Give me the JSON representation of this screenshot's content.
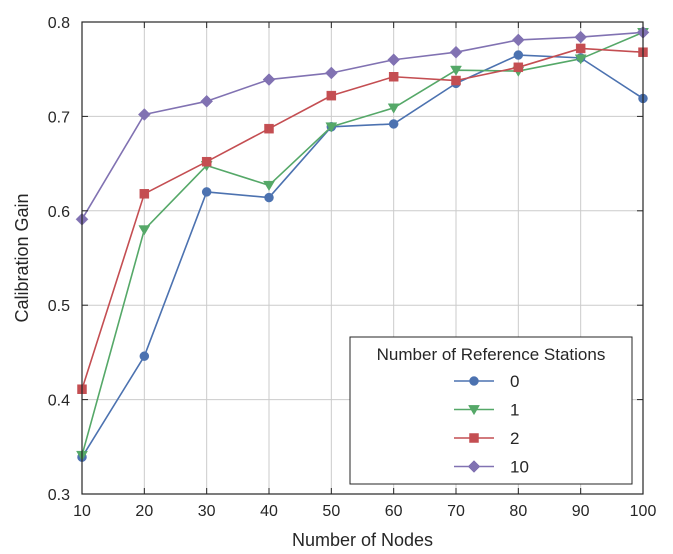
{
  "chart_data": {
    "type": "line",
    "xlabel": "Number of Nodes",
    "ylabel": "Calibration Gain",
    "x": [
      10,
      20,
      30,
      40,
      50,
      60,
      70,
      80,
      90,
      100
    ],
    "xlim": [
      10,
      100
    ],
    "ylim": [
      0.3,
      0.8
    ],
    "x_ticks": [
      "10",
      "20",
      "30",
      "40",
      "50",
      "60",
      "70",
      "80",
      "90",
      "100"
    ],
    "y_ticks": [
      "0.3",
      "0.4",
      "0.5",
      "0.6",
      "0.7",
      "0.8"
    ],
    "grid": true,
    "legend": {
      "title": "Number of Reference Stations",
      "placement": "lower-right"
    },
    "series": [
      {
        "name": "0",
        "color": "#4c72b0",
        "marker": "circle",
        "values": [
          0.339,
          0.446,
          0.62,
          0.614,
          0.689,
          0.692,
          0.735,
          0.765,
          0.762,
          0.719
        ]
      },
      {
        "name": "1",
        "color": "#55a868",
        "marker": "triangle-down",
        "values": [
          0.341,
          0.58,
          0.648,
          0.627,
          0.689,
          0.709,
          0.749,
          0.748,
          0.761,
          0.789
        ]
      },
      {
        "name": "2",
        "color": "#c44e52",
        "marker": "square",
        "values": [
          0.411,
          0.618,
          0.652,
          0.687,
          0.722,
          0.742,
          0.738,
          0.752,
          0.772,
          0.768
        ]
      },
      {
        "name": "10",
        "color": "#8172b2",
        "marker": "diamond",
        "values": [
          0.591,
          0.702,
          0.716,
          0.739,
          0.746,
          0.76,
          0.768,
          0.781,
          0.784,
          0.789
        ]
      }
    ]
  }
}
